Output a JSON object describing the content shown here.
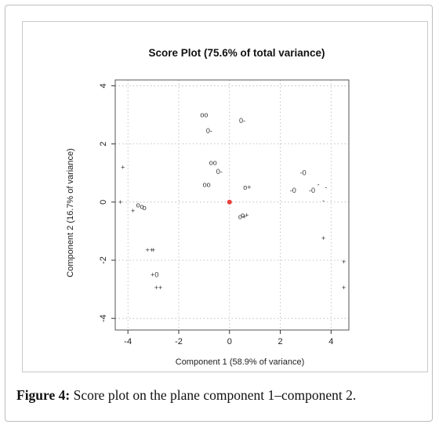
{
  "chart_data": {
    "type": "scatter",
    "title": "Score Plot (75.6% of total variance)",
    "xlabel": "Component 1 (58.9% of variance)",
    "ylabel": "Component 2 (16.7% of variance)",
    "xlim": [
      -4.5,
      4.7
    ],
    "ylim": [
      -4.4,
      4.2
    ],
    "xticks": [
      -4,
      -2,
      0,
      2,
      4
    ],
    "yticks": [
      -4,
      -2,
      0,
      2,
      4
    ],
    "grid": true,
    "origin": {
      "x": 0,
      "y": 0,
      "color": "#e8403a"
    },
    "points": [
      {
        "x": -4.2,
        "y": 1.2,
        "label": "+"
      },
      {
        "x": -4.3,
        "y": 0.0,
        "label": "+"
      },
      {
        "x": -3.8,
        "y": -0.3,
        "label": "+"
      },
      {
        "x": -3.6,
        "y": -0.1,
        "label": "o"
      },
      {
        "x": -3.45,
        "y": -0.15,
        "label": "o"
      },
      {
        "x": -3.35,
        "y": -0.2,
        "label": "o"
      },
      {
        "x": -3.15,
        "y": -1.65,
        "label": "++"
      },
      {
        "x": -3.0,
        "y": -1.65,
        "label": "+"
      },
      {
        "x": -2.95,
        "y": -2.5,
        "label": "+0"
      },
      {
        "x": -2.8,
        "y": -2.95,
        "label": "++"
      },
      {
        "x": -1.0,
        "y": 3.0,
        "label": "oo"
      },
      {
        "x": -0.8,
        "y": 2.45,
        "label": "0-"
      },
      {
        "x": -0.65,
        "y": 1.35,
        "label": "oo"
      },
      {
        "x": -0.4,
        "y": 1.05,
        "label": "0-"
      },
      {
        "x": -0.9,
        "y": 0.6,
        "label": "oo"
      },
      {
        "x": 0.5,
        "y": 2.8,
        "label": "0-"
      },
      {
        "x": 0.7,
        "y": 0.5,
        "label": "o+"
      },
      {
        "x": 0.5,
        "y": -0.5,
        "label": "o+"
      },
      {
        "x": 0.6,
        "y": -0.45,
        "label": "o+"
      },
      {
        "x": 2.5,
        "y": 0.4,
        "label": "-0"
      },
      {
        "x": 2.9,
        "y": 1.0,
        "label": "-0"
      },
      {
        "x": 3.25,
        "y": 0.4,
        "label": "-0"
      },
      {
        "x": 3.5,
        "y": 0.6,
        "label": "-"
      },
      {
        "x": 3.8,
        "y": 0.5,
        "label": "-"
      },
      {
        "x": 3.7,
        "y": 0.05,
        "label": "-"
      },
      {
        "x": 3.7,
        "y": -1.25,
        "label": "+"
      },
      {
        "x": 4.5,
        "y": -2.05,
        "label": "+"
      },
      {
        "x": 4.5,
        "y": -2.95,
        "label": "+"
      }
    ]
  },
  "caption": {
    "label": "Figure 4:",
    "text": " Score plot on the plane component 1–component 2."
  }
}
